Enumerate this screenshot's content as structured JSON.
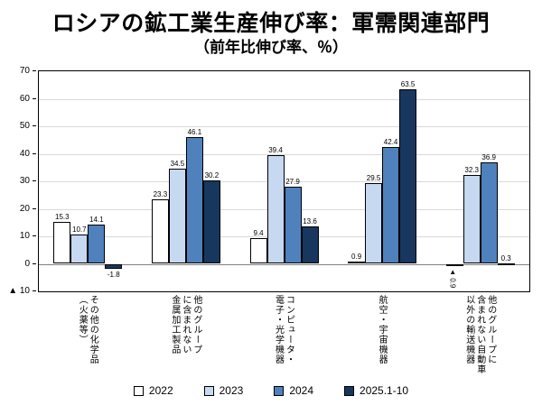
{
  "title": "ロシアの鉱工業生産伸び率：軍需関連部門",
  "subtitle": "（前年比伸び率、％）",
  "chart_data": {
    "type": "bar",
    "title": "ロシアの鉱工業生産伸び率：軍需関連部門",
    "subtitle": "（前年比伸び率、％）",
    "ylim": [
      -10,
      70
    ],
    "grid": true,
    "legend_position": "bottom",
    "ytick_values": [
      70,
      60,
      50,
      40,
      30,
      20,
      10,
      0,
      -10
    ],
    "ytick_labels": [
      "70",
      "60",
      "50",
      "40",
      "30",
      "20",
      "10",
      "0",
      "▲ 10"
    ],
    "categories": [
      "その他の化学品（火薬等）",
      "他のグループに含まれない金属加工製品",
      "コンピュータ・電子・光学機器",
      "航空・宇宙機器",
      "他のグループに含まれない自動車以外の輸送機器"
    ],
    "category_lines": [
      [
        "その他の化学品",
        "（火薬等）"
      ],
      [
        "他のグループ",
        "に含まれない",
        "金属加工製品"
      ],
      [
        "コンピュータ・",
        "電子・光学機器"
      ],
      [
        "航空・宇宙機器"
      ],
      [
        "他のグループに",
        "含まれない自動車",
        "以外の輸送機器"
      ]
    ],
    "series": [
      {
        "name": "2022",
        "color": "#ffffff",
        "values": [
          15.3,
          23.3,
          9.4,
          0.9,
          -0.9
        ],
        "labels": [
          "15.3",
          "23.3",
          "9.4",
          "0.9",
          "▲ 0.9"
        ]
      },
      {
        "name": "2023",
        "color": "#c6d9f1",
        "values": [
          10.7,
          34.5,
          39.4,
          29.5,
          32.3
        ],
        "labels": [
          "10.7",
          "34.5",
          "39.4",
          "29.5",
          "32.3"
        ]
      },
      {
        "name": "2024",
        "color": "#4f81bd",
        "values": [
          14.1,
          46.1,
          27.9,
          42.4,
          36.9
        ],
        "labels": [
          "14.1",
          "46.1",
          "27.9",
          "42.4",
          "36.9"
        ]
      },
      {
        "name": "2025.1-10",
        "color": "#17375e",
        "values": [
          -1.8,
          30.2,
          13.6,
          63.5,
          0.3
        ],
        "labels": [
          "-1.8",
          "30.2",
          "13.6",
          "63.5",
          "0.3"
        ]
      }
    ]
  }
}
